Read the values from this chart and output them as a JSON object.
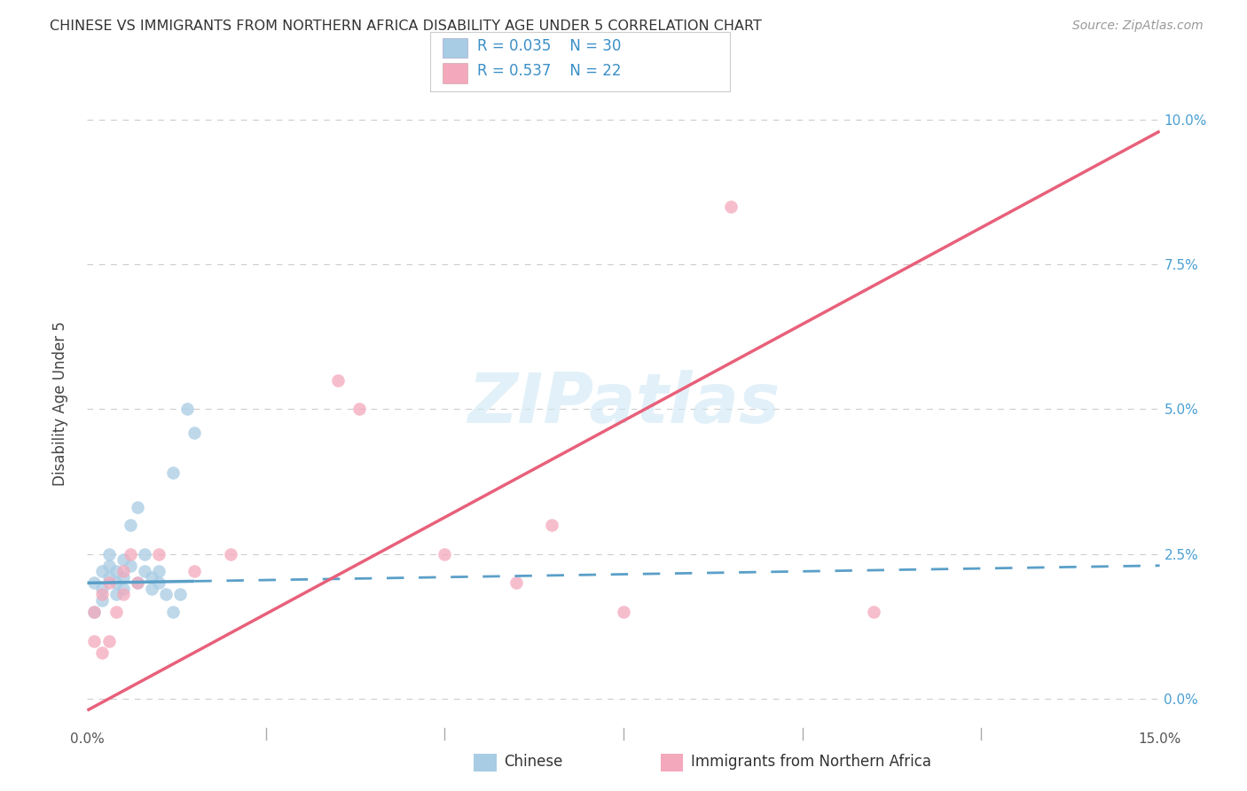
{
  "title": "CHINESE VS IMMIGRANTS FROM NORTHERN AFRICA DISABILITY AGE UNDER 5 CORRELATION CHART",
  "source": "Source: ZipAtlas.com",
  "ylabel": "Disability Age Under 5",
  "legend_label1": "Chinese",
  "legend_label2": "Immigrants from Northern Africa",
  "r1": 0.035,
  "n1": 30,
  "r2": 0.537,
  "n2": 22,
  "xlim": [
    0.0,
    0.15
  ],
  "ylim": [
    -0.005,
    0.107
  ],
  "xticks": [
    0.0,
    0.025,
    0.05,
    0.075,
    0.1,
    0.125,
    0.15
  ],
  "yticks": [
    0.0,
    0.025,
    0.05,
    0.075,
    0.1
  ],
  "ytick_labels_right": [
    "0.0%",
    "2.5%",
    "5.0%",
    "7.5%",
    "10.0%"
  ],
  "xtick_labels": [
    "0.0%",
    "",
    "",
    "",
    "",
    "",
    "15.0%"
  ],
  "color_blue": "#a8cce4",
  "color_pink": "#f4a8bc",
  "color_blue_line": "#5a9fc8",
  "color_pink_line": "#e8607a",
  "background_color": "#ffffff",
  "watermark_color": "#d0e8f5",
  "blue_x": [
    0.001,
    0.001,
    0.002,
    0.002,
    0.002,
    0.003,
    0.003,
    0.003,
    0.004,
    0.004,
    0.004,
    0.005,
    0.005,
    0.005,
    0.006,
    0.006,
    0.007,
    0.007,
    0.008,
    0.008,
    0.009,
    0.009,
    0.01,
    0.01,
    0.011,
    0.012,
    0.012,
    0.013,
    0.014,
    0.015
  ],
  "blue_y": [
    0.02,
    0.015,
    0.022,
    0.019,
    0.017,
    0.021,
    0.023,
    0.025,
    0.018,
    0.022,
    0.02,
    0.021,
    0.024,
    0.019,
    0.023,
    0.03,
    0.02,
    0.033,
    0.022,
    0.025,
    0.019,
    0.021,
    0.02,
    0.022,
    0.018,
    0.015,
    0.039,
    0.018,
    0.05,
    0.046
  ],
  "pink_x": [
    0.001,
    0.001,
    0.002,
    0.002,
    0.003,
    0.003,
    0.004,
    0.005,
    0.005,
    0.006,
    0.007,
    0.01,
    0.015,
    0.02,
    0.035,
    0.038,
    0.05,
    0.06,
    0.065,
    0.075,
    0.09,
    0.11
  ],
  "pink_y": [
    0.01,
    0.015,
    0.008,
    0.018,
    0.01,
    0.02,
    0.015,
    0.022,
    0.018,
    0.025,
    0.02,
    0.025,
    0.022,
    0.025,
    0.055,
    0.05,
    0.025,
    0.02,
    0.03,
    0.015,
    0.085,
    0.015
  ],
  "blue_trend": [
    0.021,
    0.022
  ],
  "pink_trend_x": [
    0.0,
    0.15
  ],
  "pink_trend_y": [
    -0.003,
    0.098
  ]
}
